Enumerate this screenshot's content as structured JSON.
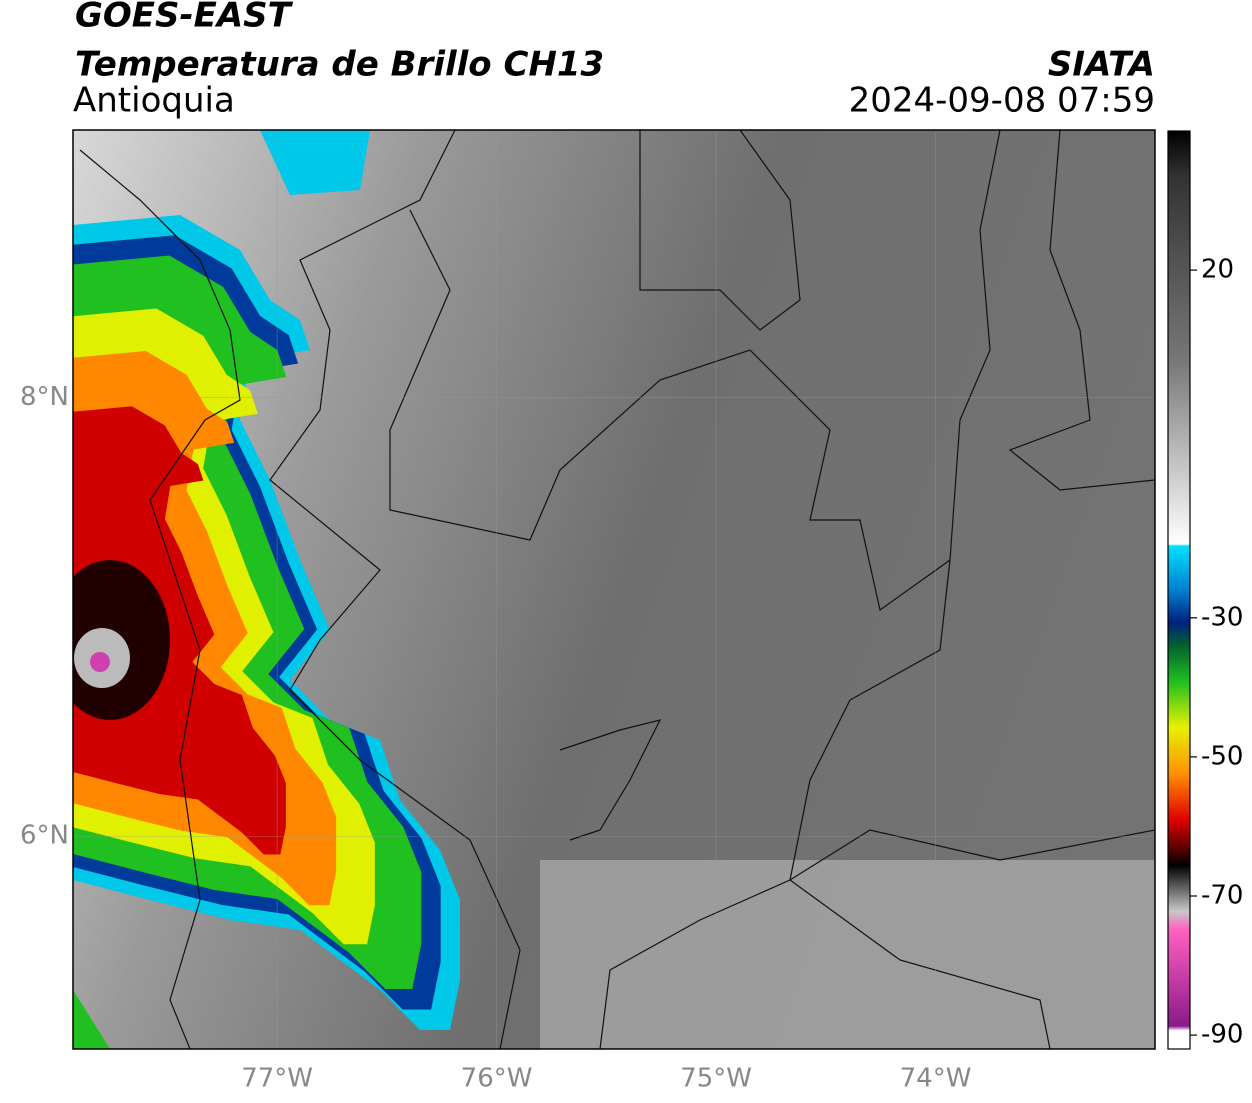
{
  "header": {
    "title": "GOES-EAST",
    "subtitle": "Temperatura de Brillo CH13",
    "region": "Antioquia",
    "agency": "SIATA",
    "timestamp": "2024-09-08 07:59"
  },
  "map": {
    "xlim": [
      -77.93,
      -73.0
    ],
    "ylim": [
      5.03,
      9.22
    ],
    "lat_ticks": [
      {
        "value": 8,
        "label": "8°N"
      },
      {
        "value": 6,
        "label": "6°N"
      }
    ],
    "lon_ticks": [
      {
        "value": -77,
        "label": "77°W"
      },
      {
        "value": -76,
        "label": "76°W"
      },
      {
        "value": -75,
        "label": "75°W"
      },
      {
        "value": -74,
        "label": "74°W"
      }
    ]
  },
  "colorbar": {
    "lim": [
      -92,
      40
    ],
    "ticks": [
      20,
      -30,
      -50,
      -70,
      -90
    ]
  }
}
